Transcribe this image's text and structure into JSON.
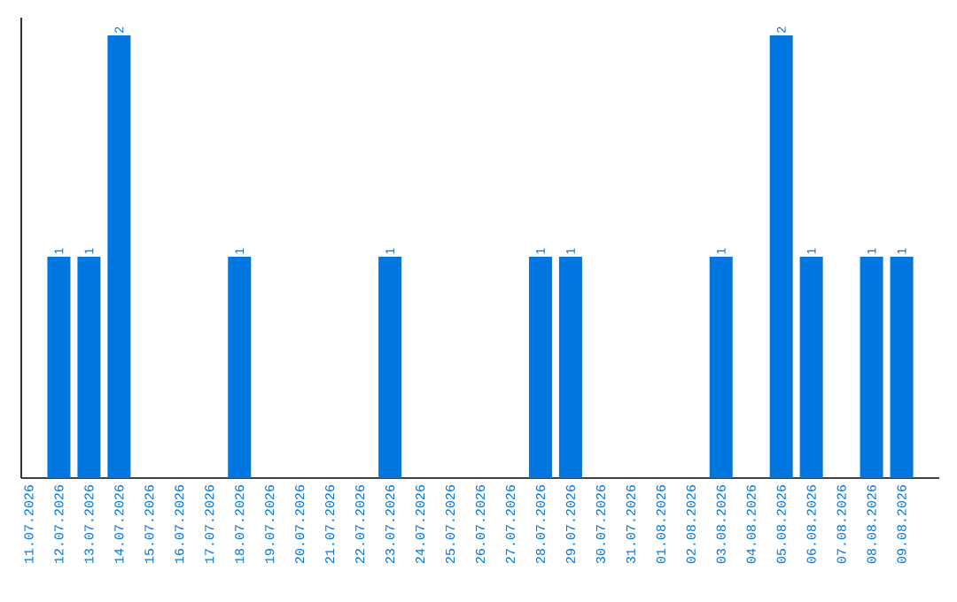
{
  "chart_data": {
    "type": "bar",
    "categories": [
      "11.07.2026",
      "12.07.2026",
      "13.07.2026",
      "14.07.2026",
      "15.07.2026",
      "16.07.2026",
      "17.07.2026",
      "18.07.2026",
      "19.07.2026",
      "20.07.2026",
      "21.07.2026",
      "22.07.2026",
      "23.07.2026",
      "24.07.2026",
      "25.07.2026",
      "26.07.2026",
      "27.07.2026",
      "28.07.2026",
      "29.07.2026",
      "30.07.2026",
      "31.07.2026",
      "01.08.2026",
      "02.08.2026",
      "03.08.2026",
      "04.08.2026",
      "05.08.2026",
      "06.08.2026",
      "07.08.2026",
      "08.08.2026",
      "09.08.2026"
    ],
    "values": [
      0,
      1,
      1,
      2,
      0,
      0,
      0,
      1,
      0,
      0,
      0,
      0,
      1,
      0,
      0,
      0,
      0,
      1,
      1,
      0,
      0,
      0,
      0,
      1,
      0,
      2,
      1,
      0,
      1,
      1
    ],
    "value_labels": [
      null,
      "1",
      "1",
      "2",
      null,
      null,
      null,
      "1",
      null,
      null,
      null,
      null,
      "1",
      null,
      null,
      null,
      null,
      "1",
      "1",
      null,
      null,
      null,
      null,
      "1",
      null,
      "2",
      "1",
      null,
      "1",
      "1"
    ],
    "color": "#0077e0"
  }
}
